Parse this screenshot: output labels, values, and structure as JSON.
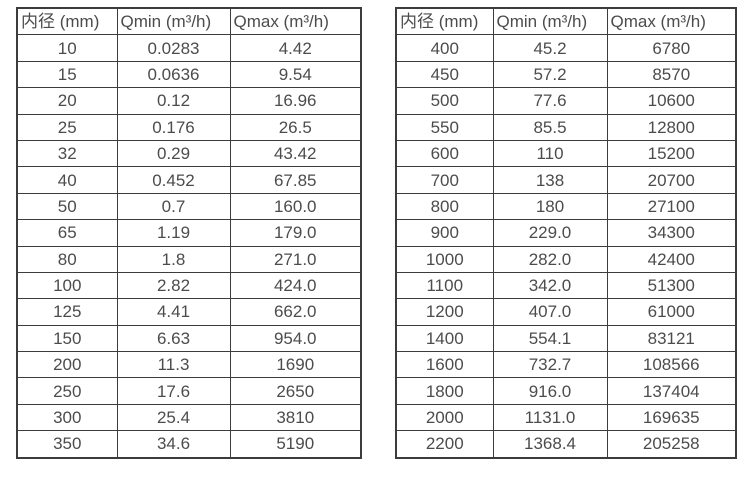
{
  "page": {
    "background_color": "#ffffff",
    "text_color": "#4c4c4c",
    "border_color": "#3c3c3c"
  },
  "tables": [
    {
      "name": "flow-range-table-small-diameters",
      "headers": [
        "内径 (mm)",
        "Qmin (m³/h)",
        "Qmax (m³/h)"
      ],
      "rows": [
        [
          "10",
          "0.0283",
          "4.42"
        ],
        [
          "15",
          "0.0636",
          "9.54"
        ],
        [
          "20",
          "0.12",
          "16.96"
        ],
        [
          "25",
          "0.176",
          "26.5"
        ],
        [
          "32",
          "0.29",
          "43.42"
        ],
        [
          "40",
          "0.452",
          "67.85"
        ],
        [
          "50",
          "0.7",
          "160.0"
        ],
        [
          "65",
          "1.19",
          "179.0"
        ],
        [
          "80",
          "1.8",
          "271.0"
        ],
        [
          "100",
          "2.82",
          "424.0"
        ],
        [
          "125",
          "4.41",
          "662.0"
        ],
        [
          "150",
          "6.63",
          "954.0"
        ],
        [
          "200",
          "11.3",
          "1690"
        ],
        [
          "250",
          "17.6",
          "2650"
        ],
        [
          "300",
          "25.4",
          "3810"
        ],
        [
          "350",
          "34.6",
          "5190"
        ]
      ]
    },
    {
      "name": "flow-range-table-large-diameters",
      "headers": [
        "内径 (mm)",
        "Qmin (m³/h)",
        "Qmax (m³/h)"
      ],
      "rows": [
        [
          "400",
          "45.2",
          "6780"
        ],
        [
          "450",
          "57.2",
          "8570"
        ],
        [
          "500",
          "77.6",
          "10600"
        ],
        [
          "550",
          "85.5",
          "12800"
        ],
        [
          "600",
          "110",
          "15200"
        ],
        [
          "700",
          "138",
          "20700"
        ],
        [
          "800",
          "180",
          "27100"
        ],
        [
          "900",
          "229.0",
          "34300"
        ],
        [
          "1000",
          "282.0",
          "42400"
        ],
        [
          "1100",
          "342.0",
          "51300"
        ],
        [
          "1200",
          "407.0",
          "61000"
        ],
        [
          "1400",
          "554.1",
          "83121"
        ],
        [
          "1600",
          "732.7",
          "108566"
        ],
        [
          "1800",
          "916.0",
          "137404"
        ],
        [
          "2000",
          "1131.0",
          "169635"
        ],
        [
          "2200",
          "1368.4",
          "205258"
        ]
      ]
    }
  ]
}
